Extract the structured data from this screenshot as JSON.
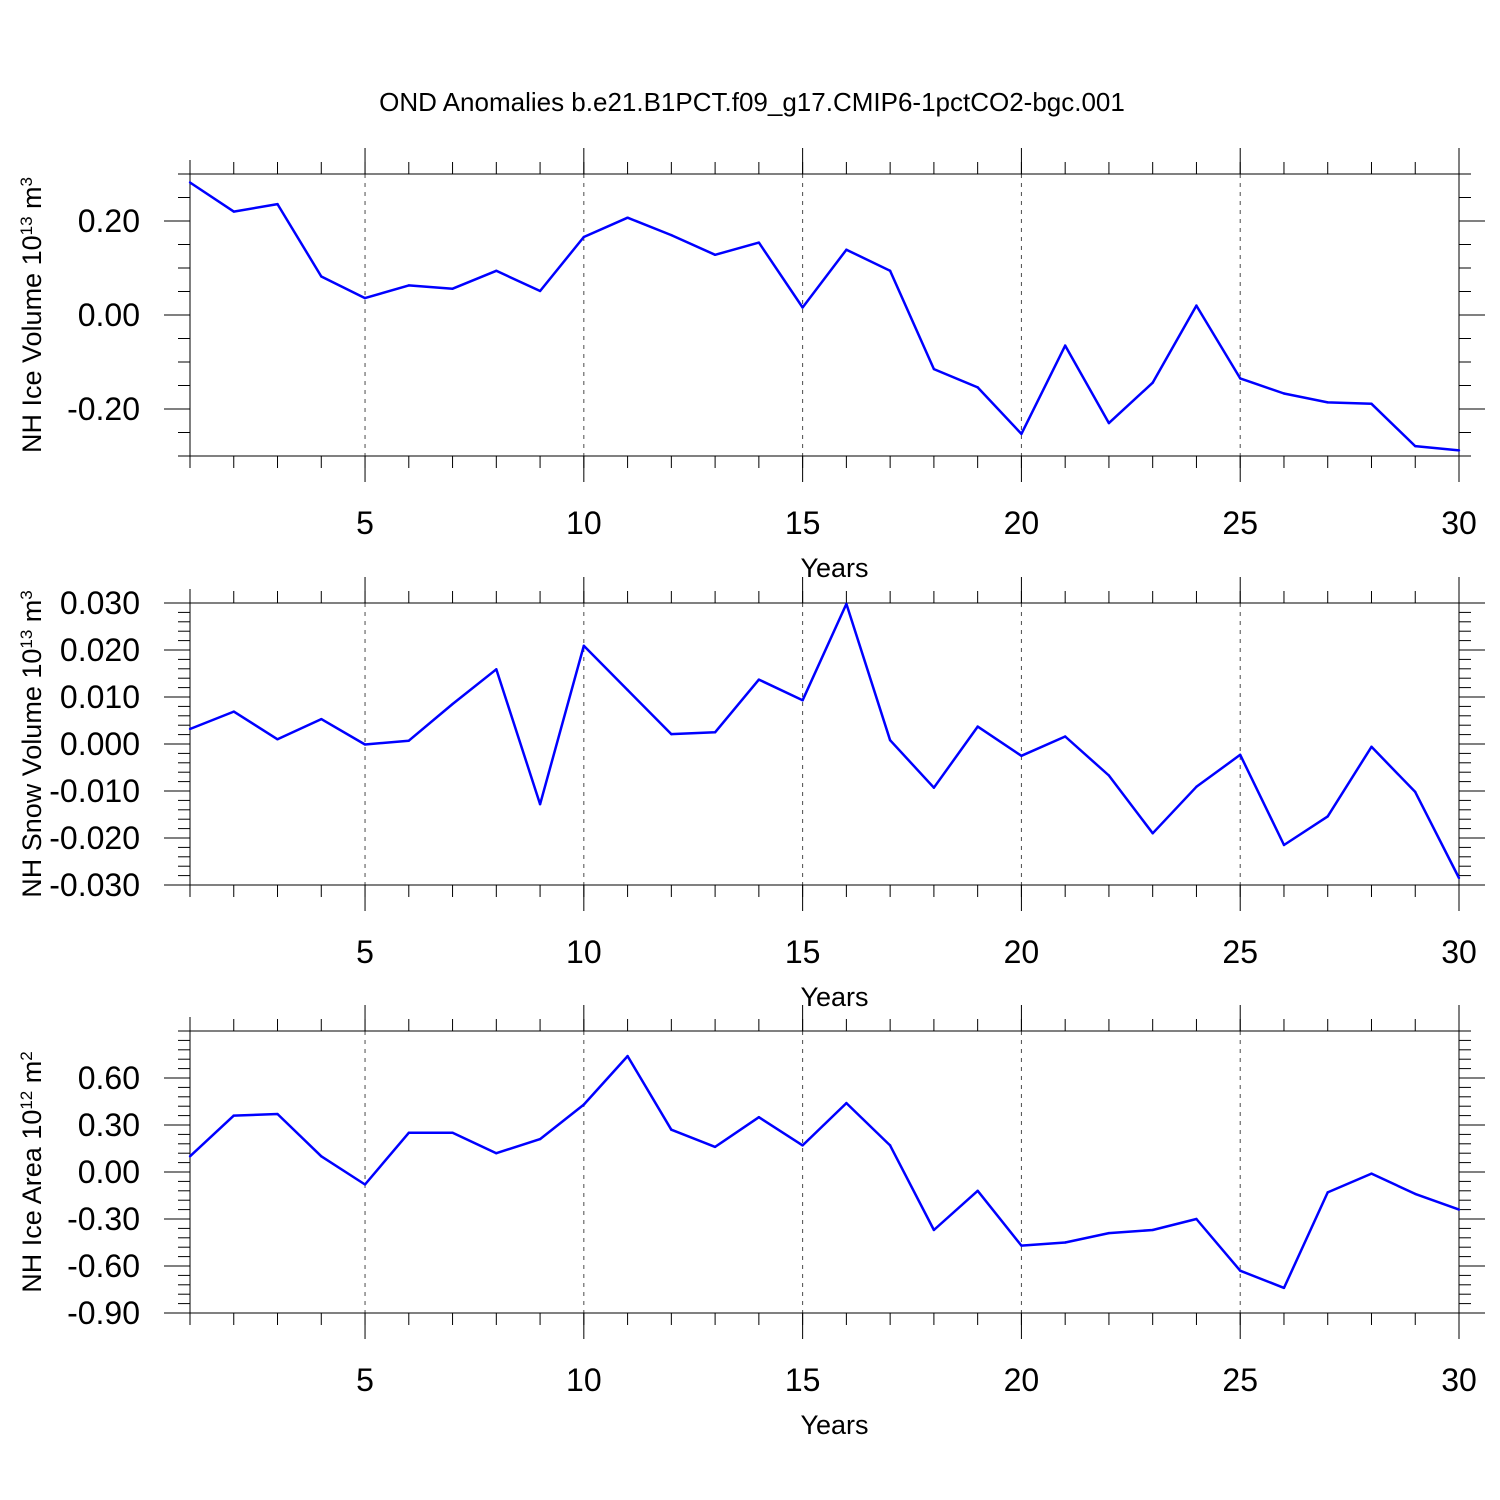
{
  "title": "OND Anomalies b.e21.B1PCT.f09_g17.CMIP6-1pctCO2-bgc.001",
  "colors": {
    "series": "#0000ff",
    "axis": "#000000"
  },
  "chart_data": [
    {
      "type": "line",
      "ylabel": {
        "text": "NH Ice Volume 10",
        "exponent": "13",
        "unit": " m",
        "unit_exponent": "3"
      },
      "xlabel": "Years",
      "xlim": [
        1,
        30
      ],
      "ylim": [
        -0.3,
        0.3
      ],
      "xticks": [
        5,
        10,
        15,
        20,
        25,
        30
      ],
      "xtick_labels": [
        "5",
        "10",
        "15",
        "20",
        "25",
        "30"
      ],
      "yticks": [
        -0.2,
        0.0,
        0.2
      ],
      "ytick_labels": [
        "-0.20",
        "0.00",
        "0.20"
      ],
      "minor_ytick_step": 0.05,
      "grid": "x dashed",
      "series": [
        {
          "x": [
            1,
            2,
            3,
            4,
            5,
            6,
            7,
            8,
            9,
            10,
            11,
            12,
            13,
            14,
            15,
            16,
            17,
            18,
            19,
            20,
            21,
            22,
            23,
            24,
            25,
            26,
            27,
            28,
            29,
            30
          ],
          "values": [
            0.282,
            0.22,
            0.236,
            0.082,
            0.036,
            0.063,
            0.056,
            0.094,
            0.051,
            0.166,
            0.207,
            0.17,
            0.128,
            0.154,
            0.016,
            0.139,
            0.094,
            -0.115,
            -0.154,
            -0.253,
            -0.065,
            -0.23,
            -0.144,
            0.02,
            -0.135,
            -0.167,
            -0.186,
            -0.189,
            -0.279,
            -0.288
          ]
        }
      ]
    },
    {
      "type": "line",
      "ylabel": {
        "text": "NH Snow Volume 10",
        "exponent": "13",
        "unit": " m",
        "unit_exponent": "3"
      },
      "xlabel": "Years",
      "xlim": [
        1,
        30
      ],
      "ylim": [
        -0.03,
        0.03
      ],
      "xticks": [
        5,
        10,
        15,
        20,
        25,
        30
      ],
      "xtick_labels": [
        "5",
        "10",
        "15",
        "20",
        "25",
        "30"
      ],
      "yticks": [
        -0.03,
        -0.02,
        -0.01,
        0.0,
        0.01,
        0.02,
        0.03
      ],
      "ytick_labels": [
        "-0.030",
        "-0.020",
        "-0.010",
        "0.000",
        "0.010",
        "0.020",
        "0.030"
      ],
      "minor_ytick_step": 0.002,
      "grid": "x dashed",
      "series": [
        {
          "x": [
            1,
            2,
            3,
            4,
            5,
            6,
            7,
            8,
            9,
            10,
            11,
            12,
            13,
            14,
            15,
            16,
            17,
            18,
            19,
            20,
            21,
            22,
            23,
            24,
            25,
            26,
            27,
            28,
            29,
            30
          ],
          "values": [
            0.0032,
            0.0069,
            0.001,
            0.0053,
            -0.0001,
            0.0007,
            0.0085,
            0.0159,
            -0.0128,
            0.0209,
            0.0115,
            0.0021,
            0.0025,
            0.0137,
            0.0093,
            0.0298,
            0.0008,
            -0.0093,
            0.0037,
            -0.0025,
            0.0016,
            -0.0067,
            -0.019,
            -0.0091,
            -0.0023,
            -0.0215,
            -0.0154,
            -0.0006,
            -0.0102,
            -0.0285
          ]
        }
      ]
    },
    {
      "type": "line",
      "ylabel": {
        "text": "NH Ice Area 10",
        "exponent": "12",
        "unit": " m",
        "unit_exponent": "2"
      },
      "xlabel": "Years",
      "xlim": [
        1,
        30
      ],
      "ylim": [
        -0.9,
        0.9
      ],
      "xticks": [
        5,
        10,
        15,
        20,
        25,
        30
      ],
      "xtick_labels": [
        "5",
        "10",
        "15",
        "20",
        "25",
        "30"
      ],
      "yticks": [
        -0.9,
        -0.6,
        -0.3,
        0.0,
        0.3,
        0.6
      ],
      "ytick_labels": [
        "-0.90",
        "-0.60",
        "-0.30",
        "0.00",
        "0.30",
        "0.60"
      ],
      "minor_ytick_step": 0.06,
      "grid": "x dashed",
      "series": [
        {
          "x": [
            1,
            2,
            3,
            4,
            5,
            6,
            7,
            8,
            9,
            10,
            11,
            12,
            13,
            14,
            15,
            16,
            17,
            18,
            19,
            20,
            21,
            22,
            23,
            24,
            25,
            26,
            27,
            28,
            29,
            30
          ],
          "values": [
            0.1,
            0.36,
            0.37,
            0.1,
            -0.08,
            0.25,
            0.25,
            0.12,
            0.21,
            0.43,
            0.74,
            0.27,
            0.16,
            0.35,
            0.17,
            0.44,
            0.17,
            -0.37,
            -0.12,
            -0.47,
            -0.45,
            -0.39,
            -0.37,
            -0.3,
            -0.63,
            -0.74,
            -0.13,
            -0.01,
            -0.14,
            -0.24
          ]
        }
      ]
    }
  ]
}
